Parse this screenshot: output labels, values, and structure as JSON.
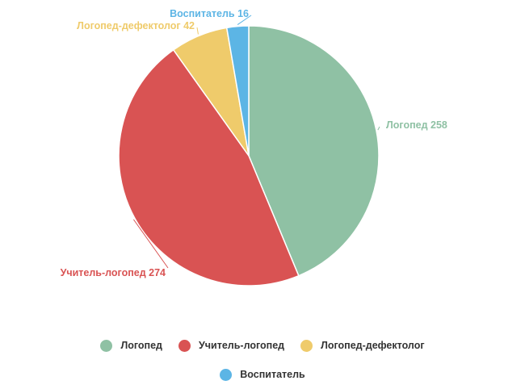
{
  "chart_data": {
    "type": "pie",
    "slices": [
      {
        "name": "Логопед",
        "value": 258,
        "label": "Логопед 258",
        "color": "#8fc1a4"
      },
      {
        "name": "Учитель-логопед",
        "value": 274,
        "label": "Учитель-логопед 274",
        "color": "#d95353"
      },
      {
        "name": "Логопед-дефектолог",
        "value": 42,
        "label": "Логопед-дефектолог 42",
        "color": "#efcb6b"
      },
      {
        "name": "Воспитатель",
        "value": 16,
        "label": "Воспитатель 16",
        "color": "#5cb5e5"
      }
    ],
    "legend_position": "bottom"
  },
  "legend": {
    "rows": [
      [
        {
          "label": "Логопед",
          "color": "#8fc1a4"
        },
        {
          "label": "Учитель-логопед",
          "color": "#d95353"
        },
        {
          "label": "Логопед-дефектолог",
          "color": "#efcb6b"
        }
      ],
      [
        {
          "label": "Воспитатель",
          "color": "#5cb5e5"
        }
      ]
    ]
  }
}
